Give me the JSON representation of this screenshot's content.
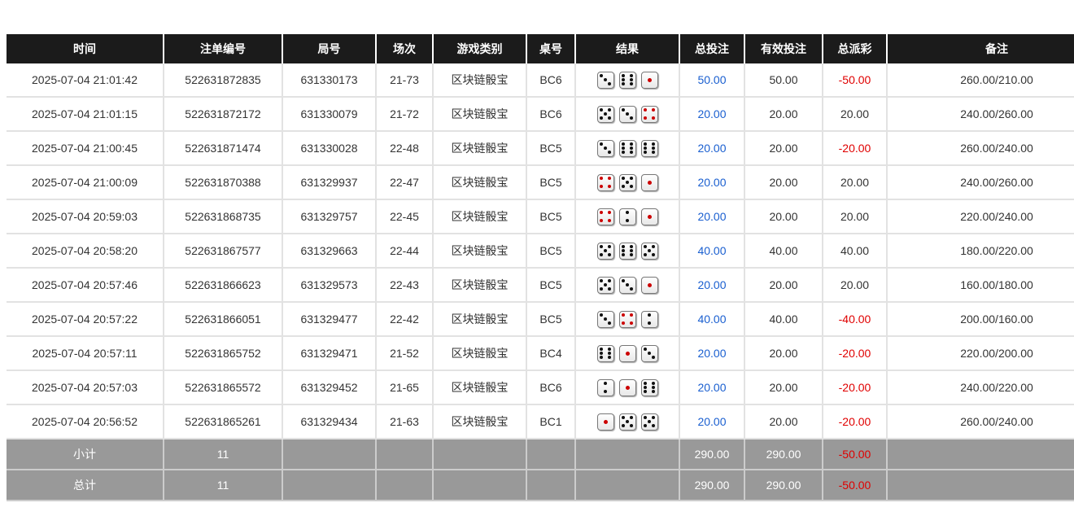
{
  "headers": [
    "时间",
    "注单编号",
    "局号",
    "场次",
    "游戏类别",
    "桌号",
    "结果",
    "总投注",
    "有效投注",
    "总派彩",
    "备注"
  ],
  "colors": {
    "header_bg": "#1b1b1b",
    "bet_blue": "#1a5fd0",
    "loss_red": "#e00000",
    "footer_bg": "#999999"
  },
  "rows": [
    {
      "time": "2025-07-04 21:01:42",
      "bet_id": "522631872835",
      "round": "631330173",
      "session": "21-73",
      "game": "区块链骰宝",
      "table": "BC6",
      "dice": [
        3,
        6,
        1
      ],
      "total_bet": "50.00",
      "valid_bet": "50.00",
      "payout": "-50.00",
      "note": "260.00/210.00"
    },
    {
      "time": "2025-07-04 21:01:15",
      "bet_id": "522631872172",
      "round": "631330079",
      "session": "21-72",
      "game": "区块链骰宝",
      "table": "BC6",
      "dice": [
        5,
        3,
        4
      ],
      "total_bet": "20.00",
      "valid_bet": "20.00",
      "payout": "20.00",
      "note": "240.00/260.00"
    },
    {
      "time": "2025-07-04 21:00:45",
      "bet_id": "522631871474",
      "round": "631330028",
      "session": "22-48",
      "game": "区块链骰宝",
      "table": "BC5",
      "dice": [
        3,
        6,
        6
      ],
      "total_bet": "20.00",
      "valid_bet": "20.00",
      "payout": "-20.00",
      "note": "260.00/240.00"
    },
    {
      "time": "2025-07-04 21:00:09",
      "bet_id": "522631870388",
      "round": "631329937",
      "session": "22-47",
      "game": "区块链骰宝",
      "table": "BC5",
      "dice": [
        4,
        5,
        1
      ],
      "total_bet": "20.00",
      "valid_bet": "20.00",
      "payout": "20.00",
      "note": "240.00/260.00"
    },
    {
      "time": "2025-07-04 20:59:03",
      "bet_id": "522631868735",
      "round": "631329757",
      "session": "22-45",
      "game": "区块链骰宝",
      "table": "BC5",
      "dice": [
        4,
        2,
        1
      ],
      "total_bet": "20.00",
      "valid_bet": "20.00",
      "payout": "20.00",
      "note": "220.00/240.00"
    },
    {
      "time": "2025-07-04 20:58:20",
      "bet_id": "522631867577",
      "round": "631329663",
      "session": "22-44",
      "game": "区块链骰宝",
      "table": "BC5",
      "dice": [
        5,
        6,
        5
      ],
      "total_bet": "40.00",
      "valid_bet": "40.00",
      "payout": "40.00",
      "note": "180.00/220.00"
    },
    {
      "time": "2025-07-04 20:57:46",
      "bet_id": "522631866623",
      "round": "631329573",
      "session": "22-43",
      "game": "区块链骰宝",
      "table": "BC5",
      "dice": [
        5,
        3,
        1
      ],
      "total_bet": "20.00",
      "valid_bet": "20.00",
      "payout": "20.00",
      "note": "160.00/180.00"
    },
    {
      "time": "2025-07-04 20:57:22",
      "bet_id": "522631866051",
      "round": "631329477",
      "session": "22-42",
      "game": "区块链骰宝",
      "table": "BC5",
      "dice": [
        3,
        4,
        2
      ],
      "total_bet": "40.00",
      "valid_bet": "40.00",
      "payout": "-40.00",
      "note": "200.00/160.00"
    },
    {
      "time": "2025-07-04 20:57:11",
      "bet_id": "522631865752",
      "round": "631329471",
      "session": "21-52",
      "game": "区块链骰宝",
      "table": "BC4",
      "dice": [
        6,
        1,
        3
      ],
      "total_bet": "20.00",
      "valid_bet": "20.00",
      "payout": "-20.00",
      "note": "220.00/200.00"
    },
    {
      "time": "2025-07-04 20:57:03",
      "bet_id": "522631865572",
      "round": "631329452",
      "session": "21-65",
      "game": "区块链骰宝",
      "table": "BC6",
      "dice": [
        2,
        1,
        6
      ],
      "total_bet": "20.00",
      "valid_bet": "20.00",
      "payout": "-20.00",
      "note": "240.00/220.00"
    },
    {
      "time": "2025-07-04 20:56:52",
      "bet_id": "522631865261",
      "round": "631329434",
      "session": "21-63",
      "game": "区块链骰宝",
      "table": "BC1",
      "dice": [
        1,
        5,
        5
      ],
      "total_bet": "20.00",
      "valid_bet": "20.00",
      "payout": "-20.00",
      "note": "260.00/240.00"
    }
  ],
  "subtotal": {
    "label": "小计",
    "count": "11",
    "total_bet": "290.00",
    "valid_bet": "290.00",
    "payout": "-50.00"
  },
  "total": {
    "label": "总计",
    "count": "11",
    "total_bet": "290.00",
    "valid_bet": "290.00",
    "payout": "-50.00"
  }
}
